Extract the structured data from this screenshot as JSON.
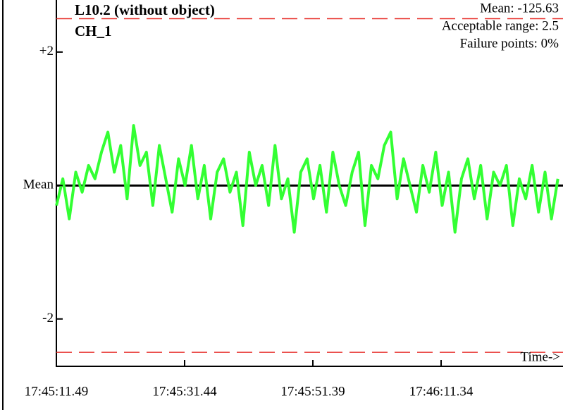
{
  "chart_data": {
    "type": "line",
    "title": "L10.2 (without object)",
    "subtitle": "CH_1",
    "annotations": [
      "Mean: -125.63",
      "Acceptable range: 2.5",
      "Failure points: 0%"
    ],
    "x_label": "Time->",
    "xlim": [
      63911.49,
      63990.3
    ],
    "xticks": [
      {
        "value": 63911.49,
        "label": "17:45:11.49"
      },
      {
        "value": 63931.44,
        "label": "17:45:31.44"
      },
      {
        "value": 63951.39,
        "label": "17:45:51.39"
      },
      {
        "value": 63971.34,
        "label": "17:46:11.34"
      }
    ],
    "ylim": [
      -2.71,
      2.78
    ],
    "yticks": [
      {
        "value": 2,
        "label": "+2"
      },
      {
        "value": 0,
        "label": "Mean"
      },
      {
        "value": -2,
        "label": "-2"
      }
    ],
    "mean_line": {
      "value": 0,
      "color": "#000000"
    },
    "limit_lines": {
      "values": [
        2.5,
        -2.5
      ],
      "color": "#e8322e"
    },
    "x": [
      63911.5,
      63912.5,
      63913.5,
      63914.5,
      63915.5,
      63916.5,
      63917.5,
      63918.5,
      63919.5,
      63920.5,
      63921.5,
      63922.5,
      63923.5,
      63924.5,
      63925.5,
      63926.5,
      63927.5,
      63928.5,
      63929.5,
      63930.5,
      63931.5,
      63932.5,
      63933.5,
      63934.5,
      63935.5,
      63936.5,
      63937.5,
      63938.5,
      63939.5,
      63940.5,
      63941.5,
      63942.5,
      63943.5,
      63944.5,
      63945.5,
      63946.5,
      63947.5,
      63948.5,
      63949.5,
      63950.5,
      63951.5,
      63952.5,
      63953.5,
      63954.5,
      63955.5,
      63956.5,
      63957.5,
      63958.5,
      63959.5,
      63960.5,
      63961.5,
      63962.5,
      63963.5,
      63964.5,
      63965.5,
      63966.5,
      63967.5,
      63968.5,
      63969.5,
      63970.5,
      63971.5,
      63972.5,
      63973.5,
      63974.5,
      63975.5,
      63976.5,
      63977.5,
      63978.5,
      63979.5,
      63980.5,
      63981.5,
      63982.5,
      63983.5,
      63984.5,
      63985.5,
      63986.5,
      63987.5,
      63988.5,
      63989.5
    ],
    "series": [
      {
        "color": "#33ff33",
        "values": [
          -0.3,
          0.1,
          -0.5,
          0.2,
          -0.1,
          0.3,
          0.1,
          0.5,
          0.8,
          0.2,
          0.6,
          -0.2,
          0.9,
          0.3,
          0.5,
          -0.3,
          0.6,
          0.1,
          -0.4,
          0.4,
          0.0,
          0.6,
          -0.2,
          0.3,
          -0.5,
          0.2,
          0.4,
          -0.1,
          0.2,
          -0.6,
          0.5,
          0.0,
          0.3,
          -0.3,
          0.6,
          -0.2,
          0.1,
          -0.7,
          0.2,
          0.4,
          -0.2,
          0.3,
          -0.4,
          0.5,
          0.0,
          -0.3,
          0.2,
          0.5,
          -0.6,
          0.3,
          0.1,
          0.6,
          0.8,
          -0.2,
          0.4,
          0.0,
          -0.4,
          0.3,
          -0.1,
          0.5,
          -0.3,
          0.2,
          -0.7,
          0.1,
          0.4,
          -0.2,
          0.3,
          -0.5,
          0.2,
          0.0,
          0.3,
          -0.6,
          0.1,
          -0.2,
          0.3,
          -0.4,
          0.2,
          -0.5,
          0.1
        ]
      }
    ]
  }
}
